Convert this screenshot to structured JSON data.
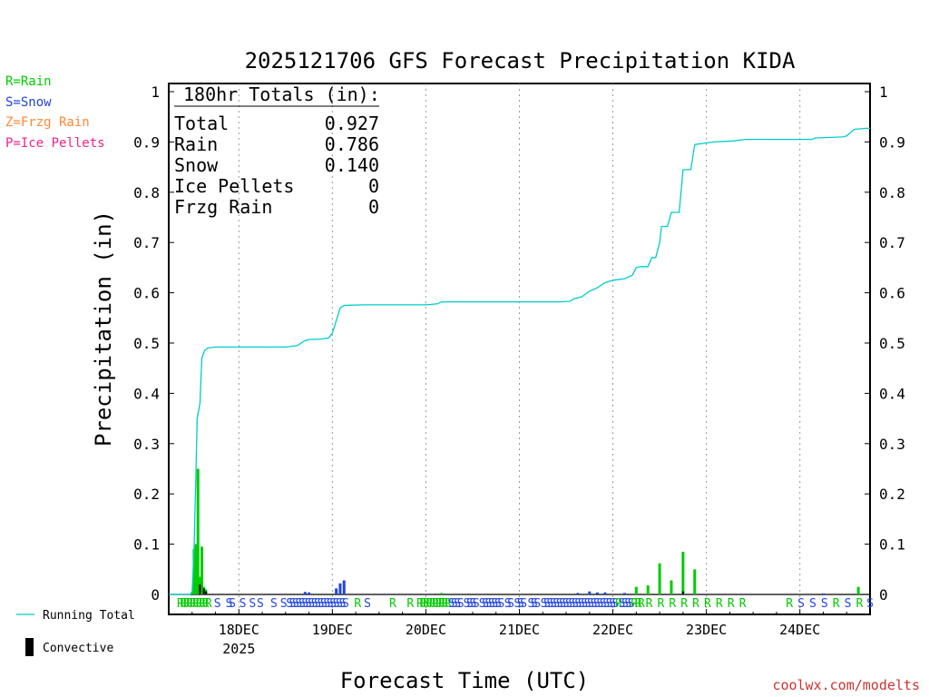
{
  "chart_data": {
    "type": "bar",
    "title": "2025121706 GFS Forecast Precipitation KIDA",
    "xlabel": "Forecast Time (UTC)",
    "ylabel": "Precipitation (in)",
    "ylim": [
      0,
      1
    ],
    "yticks": [
      "0",
      "0.1",
      "0.2",
      "0.3",
      "0.4",
      "0.5",
      "0.6",
      "0.7",
      "0.8",
      "0.9",
      "1"
    ],
    "xticks": [
      {
        "label": "18DEC",
        "sublabel": "2025",
        "hour": 18
      },
      {
        "label": "19DEC",
        "sublabel": "",
        "hour": 42
      },
      {
        "label": "20DEC",
        "sublabel": "",
        "hour": 66
      },
      {
        "label": "21DEC",
        "sublabel": "",
        "hour": 90
      },
      {
        "label": "22DEC",
        "sublabel": "",
        "hour": 114
      },
      {
        "label": "23DEC",
        "sublabel": "",
        "hour": 138
      },
      {
        "label": "24DEC",
        "sublabel": "",
        "hour": 162
      }
    ],
    "xrange_hours": [
      0,
      180
    ],
    "totals": {
      "header": "180hr Totals (in):",
      "rows": [
        {
          "label": "Total",
          "value": "0.927"
        },
        {
          "label": "Rain",
          "value": "0.786"
        },
        {
          "label": "Snow",
          "value": "0.140"
        },
        {
          "label": "Ice Pellets",
          "value": "0"
        },
        {
          "label": "Frzg Rain",
          "value": "0"
        }
      ]
    },
    "series": [
      {
        "name": "Rain",
        "color": "#00cc00",
        "bars": [
          {
            "hour": 6,
            "value": 0.005
          },
          {
            "hour": 6.5,
            "value": 0.09
          },
          {
            "hour": 7,
            "value": 0.1
          },
          {
            "hour": 7.5,
            "value": 0.25
          },
          {
            "hour": 8,
            "value": 0.035
          },
          {
            "hour": 8.5,
            "value": 0.095
          },
          {
            "hour": 9,
            "value": 0.015
          },
          {
            "hour": 9.5,
            "value": 0.01
          },
          {
            "hour": 70,
            "value": 0.003
          },
          {
            "hour": 120,
            "value": 0.015
          },
          {
            "hour": 123,
            "value": 0.018
          },
          {
            "hour": 126,
            "value": 0.062
          },
          {
            "hour": 129,
            "value": 0.028
          },
          {
            "hour": 132,
            "value": 0.085
          },
          {
            "hour": 135,
            "value": 0.05
          },
          {
            "hour": 177,
            "value": 0.015
          }
        ]
      },
      {
        "name": "Snow",
        "color": "#2244dd",
        "bars": [
          {
            "hour": 35,
            "value": 0.005
          },
          {
            "hour": 36,
            "value": 0.004
          },
          {
            "hour": 43,
            "value": 0.012
          },
          {
            "hour": 44,
            "value": 0.022
          },
          {
            "hour": 45,
            "value": 0.028
          },
          {
            "hour": 105,
            "value": 0.003
          },
          {
            "hour": 108,
            "value": 0.006
          },
          {
            "hour": 110,
            "value": 0.004
          },
          {
            "hour": 112,
            "value": 0.004
          },
          {
            "hour": 117,
            "value": 0.003
          },
          {
            "hour": 168,
            "value": 0.002
          }
        ]
      }
    ],
    "convective": [
      {
        "hour": 8,
        "value": 0.02
      },
      {
        "hour": 9,
        "value": 0.012
      },
      {
        "hour": 9.6,
        "value": 0.006
      },
      {
        "hour": 132,
        "value": 0.006
      }
    ],
    "running_total": {
      "name": "Running Total",
      "color": "#00cccc",
      "points": [
        [
          0,
          0
        ],
        [
          5.5,
          0
        ],
        [
          6,
          0.005
        ],
        [
          6.5,
          0.09
        ],
        [
          7,
          0.25
        ],
        [
          7.3,
          0.35
        ],
        [
          8,
          0.38
        ],
        [
          8.5,
          0.47
        ],
        [
          9.2,
          0.485
        ],
        [
          10,
          0.49
        ],
        [
          12,
          0.492
        ],
        [
          18,
          0.492
        ],
        [
          24,
          0.492
        ],
        [
          30,
          0.492
        ],
        [
          33,
          0.495
        ],
        [
          35,
          0.505
        ],
        [
          36,
          0.507
        ],
        [
          39,
          0.508
        ],
        [
          41,
          0.51
        ],
        [
          42,
          0.52
        ],
        [
          43,
          0.545
        ],
        [
          44,
          0.57
        ],
        [
          45,
          0.575
        ],
        [
          50,
          0.576
        ],
        [
          66,
          0.576
        ],
        [
          69,
          0.578
        ],
        [
          70,
          0.582
        ],
        [
          72,
          0.582
        ],
        [
          100,
          0.582
        ],
        [
          103,
          0.583
        ],
        [
          104,
          0.588
        ],
        [
          106,
          0.592
        ],
        [
          108,
          0.603
        ],
        [
          110,
          0.61
        ],
        [
          112,
          0.62
        ],
        [
          114,
          0.625
        ],
        [
          117,
          0.628
        ],
        [
          119,
          0.635
        ],
        [
          120,
          0.65
        ],
        [
          121,
          0.652
        ],
        [
          123,
          0.652
        ],
        [
          124,
          0.67
        ],
        [
          125,
          0.67
        ],
        [
          126,
          0.7
        ],
        [
          126.5,
          0.732
        ],
        [
          128,
          0.732
        ],
        [
          129,
          0.76
        ],
        [
          131,
          0.76
        ],
        [
          132,
          0.845
        ],
        [
          134,
          0.845
        ],
        [
          135,
          0.895
        ],
        [
          137,
          0.897
        ],
        [
          140,
          0.9
        ],
        [
          145,
          0.902
        ],
        [
          148,
          0.905
        ],
        [
          165,
          0.905
        ],
        [
          166,
          0.908
        ],
        [
          173,
          0.91
        ],
        [
          174,
          0.912
        ],
        [
          176,
          0.925
        ],
        [
          179,
          0.927
        ],
        [
          180,
          0.927
        ]
      ]
    },
    "ptype_strip": [
      {
        "hour": 3,
        "type": "R"
      },
      {
        "hour": 3.8,
        "type": "R"
      },
      {
        "hour": 4.6,
        "type": "R"
      },
      {
        "hour": 5.4,
        "type": "R"
      },
      {
        "hour": 6.2,
        "type": "R"
      },
      {
        "hour": 7,
        "type": "R"
      },
      {
        "hour": 7.8,
        "type": "R"
      },
      {
        "hour": 8.6,
        "type": "R"
      },
      {
        "hour": 9.4,
        "type": "R"
      },
      {
        "hour": 10.2,
        "type": "R"
      },
      {
        "hour": 12.5,
        "type": "S"
      },
      {
        "hour": 15.5,
        "type": "S"
      },
      {
        "hour": 16.3,
        "type": "S"
      },
      {
        "hour": 19,
        "type": "S"
      },
      {
        "hour": 21.5,
        "type": "S"
      },
      {
        "hour": 23.5,
        "type": "S"
      },
      {
        "hour": 27,
        "type": "S"
      },
      {
        "hour": 29.5,
        "type": "S"
      },
      {
        "hour": 31,
        "type": "S"
      },
      {
        "hour": 31.8,
        "type": "S"
      },
      {
        "hour": 32.6,
        "type": "S"
      },
      {
        "hour": 33.4,
        "type": "S"
      },
      {
        "hour": 34.2,
        "type": "S"
      },
      {
        "hour": 35,
        "type": "S"
      },
      {
        "hour": 35.8,
        "type": "S"
      },
      {
        "hour": 36.6,
        "type": "S"
      },
      {
        "hour": 37.4,
        "type": "S"
      },
      {
        "hour": 38.2,
        "type": "S"
      },
      {
        "hour": 39,
        "type": "S"
      },
      {
        "hour": 39.8,
        "type": "S"
      },
      {
        "hour": 40.6,
        "type": "S"
      },
      {
        "hour": 41.4,
        "type": "S"
      },
      {
        "hour": 42.2,
        "type": "S"
      },
      {
        "hour": 43,
        "type": "S"
      },
      {
        "hour": 43.8,
        "type": "S"
      },
      {
        "hour": 44.6,
        "type": "S"
      },
      {
        "hour": 45.4,
        "type": "S"
      },
      {
        "hour": 48.5,
        "type": "R"
      },
      {
        "hour": 51,
        "type": "S"
      },
      {
        "hour": 57.5,
        "type": "R"
      },
      {
        "hour": 62,
        "type": "R"
      },
      {
        "hour": 64.5,
        "type": "R"
      },
      {
        "hour": 65.3,
        "type": "R"
      },
      {
        "hour": 66.1,
        "type": "R"
      },
      {
        "hour": 66.9,
        "type": "R"
      },
      {
        "hour": 67.7,
        "type": "R"
      },
      {
        "hour": 68.5,
        "type": "R"
      },
      {
        "hour": 69.3,
        "type": "R"
      },
      {
        "hour": 70.1,
        "type": "R"
      },
      {
        "hour": 70.9,
        "type": "R"
      },
      {
        "hour": 71.7,
        "type": "R"
      },
      {
        "hour": 72.5,
        "type": "S"
      },
      {
        "hour": 73.3,
        "type": "S"
      },
      {
        "hour": 74.1,
        "type": "S"
      },
      {
        "hour": 74.9,
        "type": "S"
      },
      {
        "hour": 76.5,
        "type": "S"
      },
      {
        "hour": 77.3,
        "type": "S"
      },
      {
        "hour": 78.1,
        "type": "S"
      },
      {
        "hour": 78.9,
        "type": "S"
      },
      {
        "hour": 80.5,
        "type": "S"
      },
      {
        "hour": 81.3,
        "type": "S"
      },
      {
        "hour": 82.1,
        "type": "S"
      },
      {
        "hour": 82.9,
        "type": "S"
      },
      {
        "hour": 83.7,
        "type": "S"
      },
      {
        "hour": 84.5,
        "type": "S"
      },
      {
        "hour": 85.3,
        "type": "S"
      },
      {
        "hour": 87,
        "type": "S"
      },
      {
        "hour": 87.8,
        "type": "S"
      },
      {
        "hour": 89.5,
        "type": "S"
      },
      {
        "hour": 90.3,
        "type": "S"
      },
      {
        "hour": 91.1,
        "type": "S"
      },
      {
        "hour": 93,
        "type": "S"
      },
      {
        "hour": 93.8,
        "type": "S"
      },
      {
        "hour": 94.6,
        "type": "S"
      },
      {
        "hour": 96.3,
        "type": "S"
      },
      {
        "hour": 97.1,
        "type": "S"
      },
      {
        "hour": 97.9,
        "type": "S"
      },
      {
        "hour": 98.7,
        "type": "S"
      },
      {
        "hour": 99.5,
        "type": "S"
      },
      {
        "hour": 100.3,
        "type": "S"
      },
      {
        "hour": 101.1,
        "type": "S"
      },
      {
        "hour": 101.9,
        "type": "S"
      },
      {
        "hour": 102.7,
        "type": "S"
      },
      {
        "hour": 103.5,
        "type": "S"
      },
      {
        "hour": 104.3,
        "type": "S"
      },
      {
        "hour": 105.1,
        "type": "S"
      },
      {
        "hour": 105.9,
        "type": "S"
      },
      {
        "hour": 106.7,
        "type": "S"
      },
      {
        "hour": 107.5,
        "type": "S"
      },
      {
        "hour": 108.3,
        "type": "S"
      },
      {
        "hour": 109.1,
        "type": "S"
      },
      {
        "hour": 109.9,
        "type": "S"
      },
      {
        "hour": 110.7,
        "type": "S"
      },
      {
        "hour": 111.5,
        "type": "S"
      },
      {
        "hour": 112.3,
        "type": "S"
      },
      {
        "hour": 113.1,
        "type": "S"
      },
      {
        "hour": 113.9,
        "type": "S"
      },
      {
        "hour": 114.7,
        "type": "S"
      },
      {
        "hour": 115.5,
        "type": "R"
      },
      {
        "hour": 116.3,
        "type": "S"
      },
      {
        "hour": 117.1,
        "type": "S"
      },
      {
        "hour": 117.9,
        "type": "S"
      },
      {
        "hour": 118.7,
        "type": "S"
      },
      {
        "hour": 119.5,
        "type": "R"
      },
      {
        "hour": 120.5,
        "type": "R"
      },
      {
        "hour": 121.3,
        "type": "R"
      },
      {
        "hour": 123.3,
        "type": "R"
      },
      {
        "hour": 126.3,
        "type": "R"
      },
      {
        "hour": 129.3,
        "type": "R"
      },
      {
        "hour": 132.3,
        "type": "R"
      },
      {
        "hour": 135.3,
        "type": "R"
      },
      {
        "hour": 138.3,
        "type": "R"
      },
      {
        "hour": 141.3,
        "type": "R"
      },
      {
        "hour": 144.3,
        "type": "R"
      },
      {
        "hour": 147.3,
        "type": "R"
      },
      {
        "hour": 159.3,
        "type": "R"
      },
      {
        "hour": 162.3,
        "type": "S"
      },
      {
        "hour": 165.3,
        "type": "S"
      },
      {
        "hour": 168.3,
        "type": "S"
      },
      {
        "hour": 171.3,
        "type": "R"
      },
      {
        "hour": 174.3,
        "type": "S"
      },
      {
        "hour": 177.3,
        "type": "R"
      },
      {
        "hour": 180,
        "type": "S"
      }
    ]
  },
  "legend": {
    "ptypes": [
      {
        "text": "R=Rain",
        "color": "#00cc00"
      },
      {
        "text": "S=Snow",
        "color": "#2244dd"
      },
      {
        "text": "Z=Frzg Rain",
        "color": "#ff8833"
      },
      {
        "text": "P=Ice Pellets",
        "color": "#ee2288"
      }
    ],
    "running_total_label": "Running Total",
    "convective_label": "Convective"
  },
  "credit": "coolwx.com/modelts"
}
